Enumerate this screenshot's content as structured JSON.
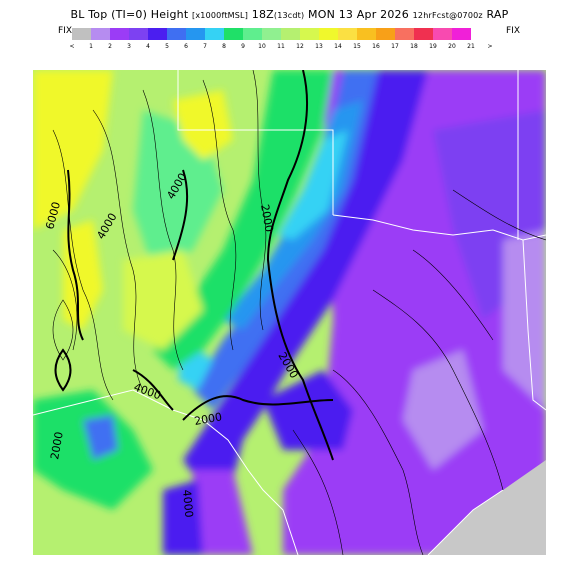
{
  "header": {
    "title_main": "BL Top (TI=0) Height",
    "title_units": "[x1000ftMSL]",
    "title_time": "18Z",
    "title_cdt": "(13cdt)",
    "title_date": "MON 13 Apr 2026",
    "title_fcst": "12hrFcst@0700z",
    "title_model": "RAP",
    "fix_left": "FIX",
    "fix_right": "FIX"
  },
  "colorbar": {
    "tick_labels": [
      "<",
      "1",
      "2",
      "3",
      "4",
      "5",
      "6",
      "7",
      "8",
      "9",
      "10",
      "11",
      "12",
      "13",
      "14",
      "15",
      "16",
      "17",
      "18",
      "19",
      "20",
      "21",
      ">"
    ],
    "colors": [
      "#c0c0c0",
      "#b68cf0",
      "#9b3cf6",
      "#7d41f2",
      "#4b1ef0",
      "#3f6ff2",
      "#2596f0",
      "#35d2f4",
      "#1fe068",
      "#5fee8e",
      "#90f090",
      "#b5f070",
      "#d6f84e",
      "#f0f82c",
      "#fbe042",
      "#f9c020",
      "#f8a018",
      "#f87060",
      "#f03050",
      "#f84ab0",
      "#f020d8"
    ]
  },
  "map": {
    "contour_labels": [
      "6000",
      "4000",
      "4000",
      "2000",
      "2000",
      "4000",
      "2000",
      "4000",
      "2000"
    ],
    "colors": {
      "lavender": "#b68cf0",
      "purple": "#9b3cf6",
      "violet": "#7d41f2",
      "blue": "#4b1ef0",
      "medblue": "#3f6ff2",
      "lightblue": "#2596f0",
      "cyan": "#35d2f4",
      "green": "#1fe068",
      "lightgreen": "#5fee8e",
      "palegreen": "#90f090",
      "yellowgreen": "#b5f070",
      "lime": "#d6f84e",
      "yellow": "#f0f82c",
      "gulf": "#c8c8c8"
    }
  }
}
